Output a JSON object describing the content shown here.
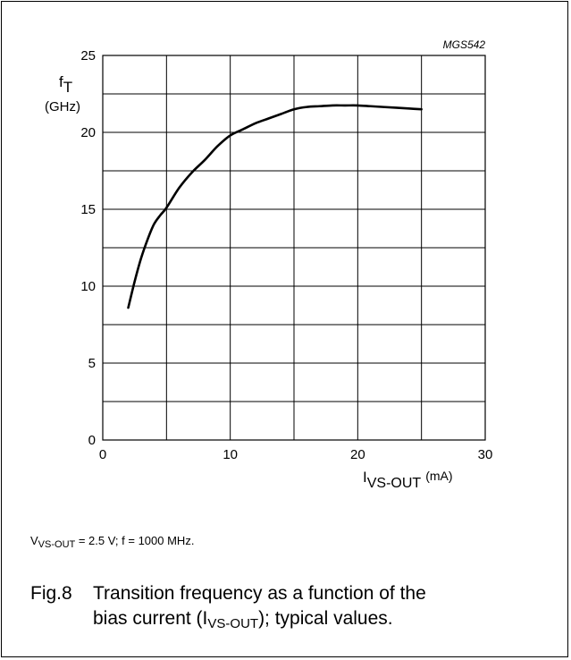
{
  "chart_data": {
    "type": "line",
    "figure_id": "MGS542",
    "ylabel_symbol": "f",
    "ylabel_sub": "T",
    "ylabel_unit": "(GHz)",
    "xlabel_symbol": "I",
    "xlabel_sub": "VS-OUT",
    "xlabel_unit": "(mA)",
    "xlim": [
      0,
      30
    ],
    "ylim": [
      0,
      25
    ],
    "xticks": [
      0,
      10,
      20,
      30
    ],
    "yticks": [
      0,
      5,
      10,
      15,
      20,
      25
    ],
    "grid": true,
    "series": [
      {
        "x": [
          2,
          2.5,
          3,
          3.5,
          4,
          4.5,
          5,
          6,
          7,
          8,
          9,
          10,
          11,
          12,
          13,
          14,
          15,
          16,
          17,
          18,
          19,
          20,
          21,
          22,
          23,
          24,
          25
        ],
        "y": [
          8.6,
          10.3,
          11.8,
          13.0,
          14.0,
          14.6,
          15.1,
          16.4,
          17.4,
          18.2,
          19.1,
          19.8,
          20.2,
          20.6,
          20.9,
          21.2,
          21.5,
          21.65,
          21.7,
          21.75,
          21.75,
          21.75,
          21.7,
          21.65,
          21.6,
          21.55,
          21.5
        ]
      }
    ]
  },
  "caption": {
    "v_symbol": "V",
    "v_sub": "VS-OUT",
    "rest": " = 2.5 V; f = 1000 MHz."
  },
  "figure": {
    "number": "Fig.8",
    "line1": "Transition frequency as a function of the",
    "line2_pre": "bias current (I",
    "line2_sub": "VS-OUT",
    "line2_post": "); typical values."
  }
}
